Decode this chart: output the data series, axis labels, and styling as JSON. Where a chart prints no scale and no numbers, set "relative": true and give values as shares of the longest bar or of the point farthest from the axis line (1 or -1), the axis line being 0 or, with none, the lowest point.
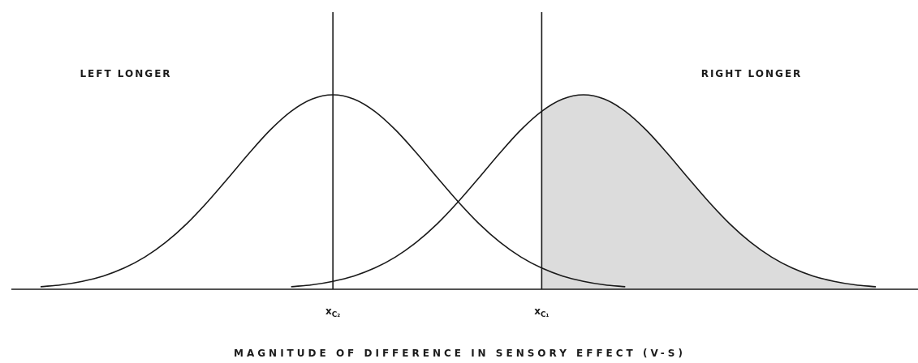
{
  "chart_data": {
    "type": "line",
    "relative": true,
    "xlabel": "MAGNITUDE OF DIFFERENCE IN SENSORY EFFECT (V-S)",
    "annotations": [
      "LEFT LONGER",
      "RIGHT LONGER"
    ],
    "categories": [
      null,
      null,
      null,
      null,
      null,
      null,
      null,
      null,
      null,
      null,
      null,
      null,
      null,
      null,
      "x$_{C₂}$",
      null,
      null,
      null,
      null,
      null,
      null,
      null,
      null,
      null,
      "x$_{C₁}$",
      null,
      null,
      null,
      null,
      null,
      null,
      null,
      null,
      null,
      null,
      null,
      null,
      null,
      null,
      null,
      null
    ],
    "series": [
      {
        "color": "#1a1a1a",
        "values": [
          0.013,
          0.023,
          0.041,
          0.068,
          0.109,
          0.166,
          0.242,
          0.337,
          0.45,
          0.574,
          0.701,
          0.819,
          0.915,
          0.978,
          1,
          0.978,
          0.915,
          0.819,
          0.701,
          0.574,
          0.45,
          0.337,
          0.242,
          0.166,
          0.109,
          0.068,
          0.041,
          0.023,
          0.013,
          null,
          null,
          null,
          null,
          null,
          null,
          null,
          null,
          null,
          null,
          null,
          null
        ]
      },
      {
        "color": "#1a1a1a",
        "values": [
          null,
          null,
          null,
          null,
          null,
          null,
          null,
          null,
          null,
          null,
          null,
          null,
          0.013,
          0.023,
          0.041,
          0.068,
          0.109,
          0.166,
          0.242,
          0.337,
          0.45,
          0.574,
          0.701,
          0.819,
          0.915,
          0.978,
          1,
          0.978,
          0.915,
          0.819,
          0.701,
          0.574,
          0.45,
          0.337,
          0.242,
          0.166,
          0.109,
          0.068,
          0.041,
          0.023,
          0.013
        ]
      },
      {
        "type": "area",
        "color": "#dcdcdc",
        "values": [
          null,
          null,
          null,
          null,
          null,
          null,
          null,
          null,
          null,
          null,
          null,
          null,
          null,
          null,
          null,
          null,
          null,
          null,
          null,
          null,
          null,
          null,
          null,
          null,
          0.915,
          0.978,
          1,
          0.978,
          0.915,
          0.819,
          0.701,
          0.574,
          0.45,
          0.337,
          0.242,
          0.166,
          0.109,
          0.068,
          0.041,
          0.023,
          0.013
        ]
      }
    ],
    "ref_lines": [
      {
        "axis": "x",
        "value": "x$_{C₂}$",
        "color": "#1a1a1a"
      },
      {
        "axis": "x",
        "value": "x$_{C₁}$",
        "color": "#1a1a1a"
      }
    ],
    "legend": false,
    "marker": "none",
    "line_style": "solid"
  }
}
